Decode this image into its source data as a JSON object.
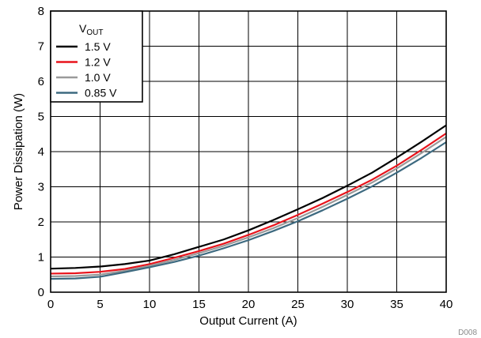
{
  "chart_data": {
    "type": "line",
    "title": "",
    "xlabel": "Output Current (A)",
    "ylabel": "Power Dissipation (W)",
    "xlim": [
      0,
      40
    ],
    "ylim": [
      0,
      8
    ],
    "x_ticks": [
      0,
      5,
      10,
      15,
      20,
      25,
      30,
      35,
      40
    ],
    "y_ticks": [
      0,
      1,
      2,
      3,
      4,
      5,
      6,
      7,
      8
    ],
    "grid": true,
    "legend": {
      "placement": "top-left",
      "title_main": "V",
      "title_sub": "OUT"
    },
    "annotation": "D008",
    "series": [
      {
        "name": "1.5 V",
        "color": "#000000",
        "x": [
          0,
          2.5,
          5,
          7.5,
          10,
          12.5,
          15,
          17.5,
          20,
          22.5,
          25,
          27.5,
          30,
          32.5,
          35,
          37.5,
          40
        ],
        "y": [
          0.67,
          0.69,
          0.73,
          0.8,
          0.9,
          1.08,
          1.29,
          1.5,
          1.76,
          2.05,
          2.36,
          2.68,
          3.03,
          3.4,
          3.83,
          4.28,
          4.75
        ]
      },
      {
        "name": "1.2 V",
        "color": "#e8141c",
        "x": [
          0,
          2.5,
          5,
          7.5,
          10,
          12.5,
          15,
          17.5,
          20,
          22.5,
          25,
          27.5,
          30,
          32.5,
          35,
          37.5,
          40
        ],
        "y": [
          0.53,
          0.54,
          0.58,
          0.66,
          0.8,
          0.98,
          1.17,
          1.38,
          1.63,
          1.9,
          2.2,
          2.52,
          2.85,
          3.2,
          3.6,
          4.05,
          4.52
        ]
      },
      {
        "name": "1.0 V",
        "color": "#9a9a9a",
        "x": [
          0,
          2.5,
          5,
          7.5,
          10,
          12.5,
          15,
          17.5,
          20,
          22.5,
          25,
          27.5,
          30,
          32.5,
          35,
          37.5,
          40
        ],
        "y": [
          0.45,
          0.46,
          0.5,
          0.61,
          0.75,
          0.92,
          1.11,
          1.32,
          1.56,
          1.82,
          2.11,
          2.43,
          2.77,
          3.12,
          3.52,
          3.96,
          4.42
        ]
      },
      {
        "name": "0.85 V",
        "color": "#3d6a80",
        "x": [
          0,
          2.5,
          5,
          7.5,
          10,
          12.5,
          15,
          17.5,
          20,
          22.5,
          25,
          27.5,
          30,
          32.5,
          35,
          37.5,
          40
        ],
        "y": [
          0.38,
          0.39,
          0.44,
          0.57,
          0.71,
          0.86,
          1.04,
          1.25,
          1.48,
          1.74,
          2.02,
          2.33,
          2.66,
          3.01,
          3.4,
          3.82,
          4.27
        ]
      }
    ]
  }
}
